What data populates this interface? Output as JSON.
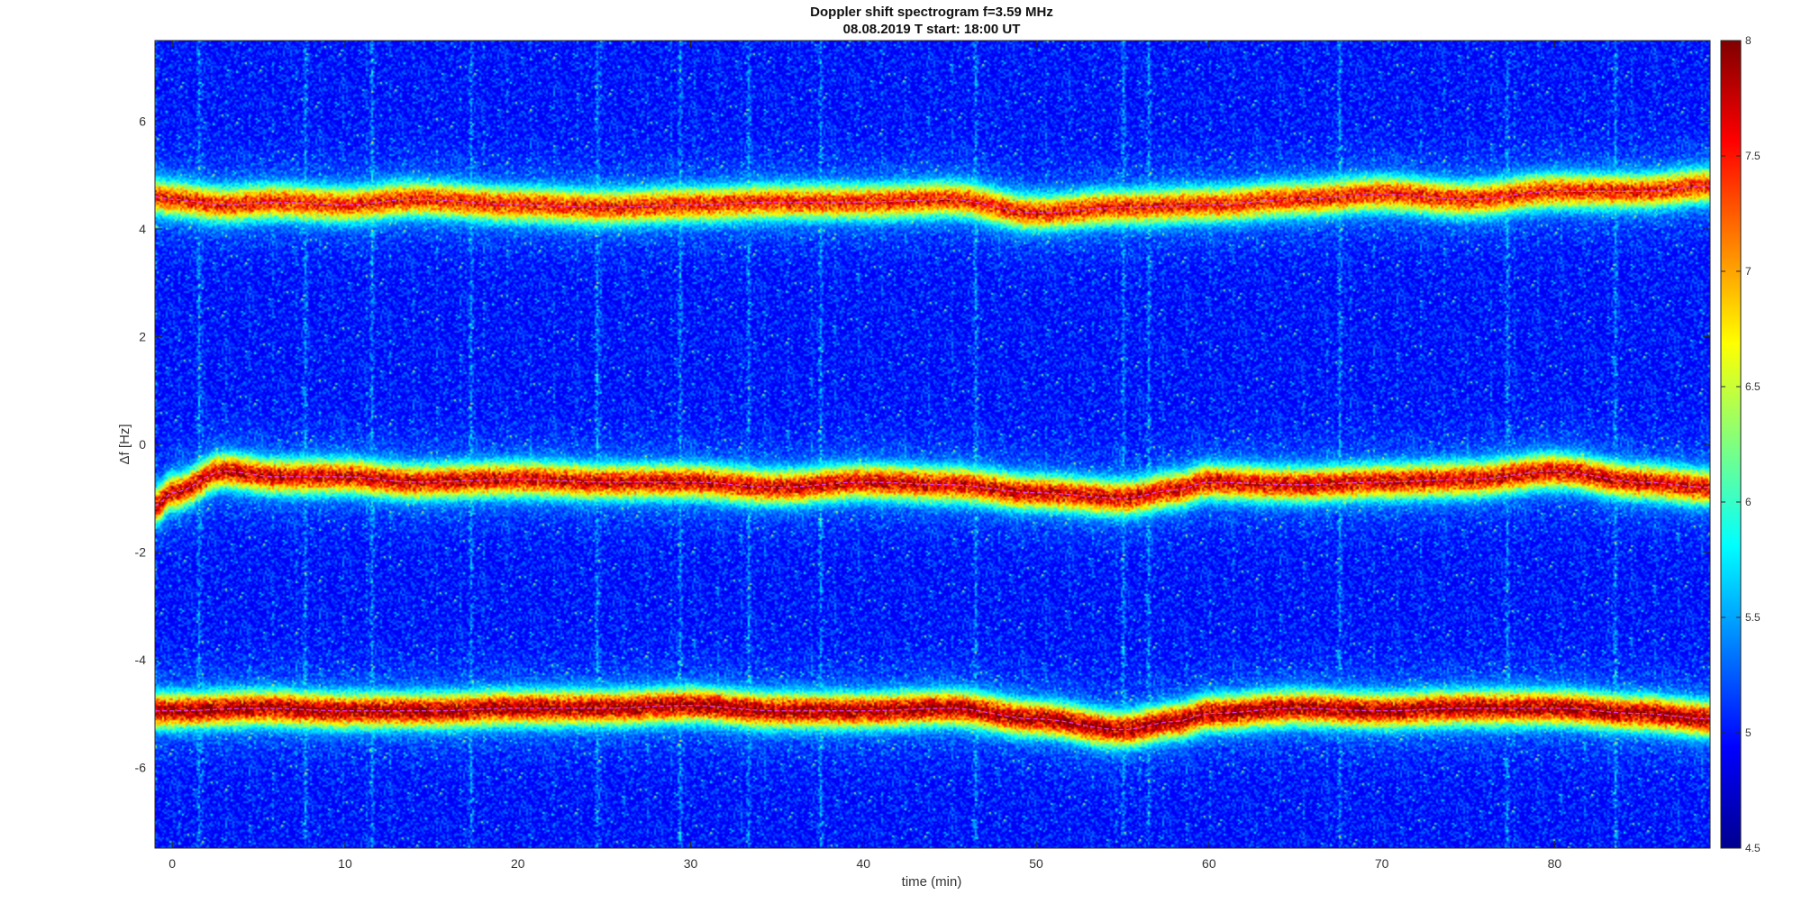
{
  "chart_data": {
    "type": "heatmap",
    "title": "Doppler shift spectrogram f=3.59 MHz",
    "subtitle": "08.08.2019    T start: 18:00 UT",
    "xlabel": "time (min)",
    "ylabel": "Δf [Hz]",
    "xlim": [
      -1,
      89
    ],
    "ylim": [
      -7.5,
      7.5
    ],
    "x_ticks": [
      0,
      10,
      20,
      30,
      40,
      50,
      60,
      70,
      80
    ],
    "y_ticks": [
      -6,
      -4,
      -2,
      0,
      2,
      4,
      6
    ],
    "colorbar": {
      "range": [
        4.5,
        8
      ],
      "ticks": [
        4.5,
        5,
        5.5,
        6,
        6.5,
        7,
        7.5,
        8
      ],
      "colormap": "jet"
    },
    "noise_level": 4.9,
    "vertical_streaks_min": [
      1.5,
      7.7,
      11.5,
      17.3,
      24.5,
      29.3,
      33.3,
      37.5,
      46.5,
      55.0,
      56.5,
      67.5,
      77.2,
      83.5
    ],
    "traces": [
      {
        "t": [
          -1,
          0,
          3,
          6,
          10,
          14,
          20,
          25,
          30,
          35,
          40,
          45,
          50,
          55,
          60,
          65,
          70,
          75,
          80,
          85,
          89
        ],
        "df": [
          4.6,
          4.55,
          4.45,
          4.5,
          4.45,
          4.55,
          4.45,
          4.4,
          4.45,
          4.5,
          4.5,
          4.55,
          4.3,
          4.4,
          4.45,
          4.55,
          4.65,
          4.55,
          4.7,
          4.7,
          4.8
        ],
        "intensity": 7.4
      },
      {
        "t": [
          -1,
          0,
          3,
          6,
          10,
          14,
          20,
          25,
          30,
          35,
          40,
          45,
          50,
          55,
          58,
          60,
          65,
          70,
          75,
          80,
          85,
          89
        ],
        "df": [
          -1.15,
          -0.9,
          -0.5,
          -0.6,
          -0.6,
          -0.7,
          -0.65,
          -0.7,
          -0.7,
          -0.8,
          -0.7,
          -0.75,
          -0.9,
          -1.0,
          -0.85,
          -0.7,
          -0.75,
          -0.7,
          -0.65,
          -0.5,
          -0.7,
          -0.8
        ],
        "intensity": 7.6
      },
      {
        "t": [
          -1,
          0,
          5,
          10,
          15,
          20,
          25,
          30,
          35,
          40,
          45,
          50,
          55,
          58,
          60,
          65,
          70,
          75,
          80,
          85,
          89
        ],
        "df": [
          -4.95,
          -4.95,
          -4.9,
          -4.95,
          -4.95,
          -4.9,
          -4.9,
          -4.85,
          -4.95,
          -4.95,
          -4.9,
          -5.1,
          -5.3,
          -5.15,
          -5.0,
          -4.9,
          -4.95,
          -4.9,
          -4.9,
          -5.0,
          -5.1
        ],
        "intensity": 7.8
      }
    ]
  }
}
